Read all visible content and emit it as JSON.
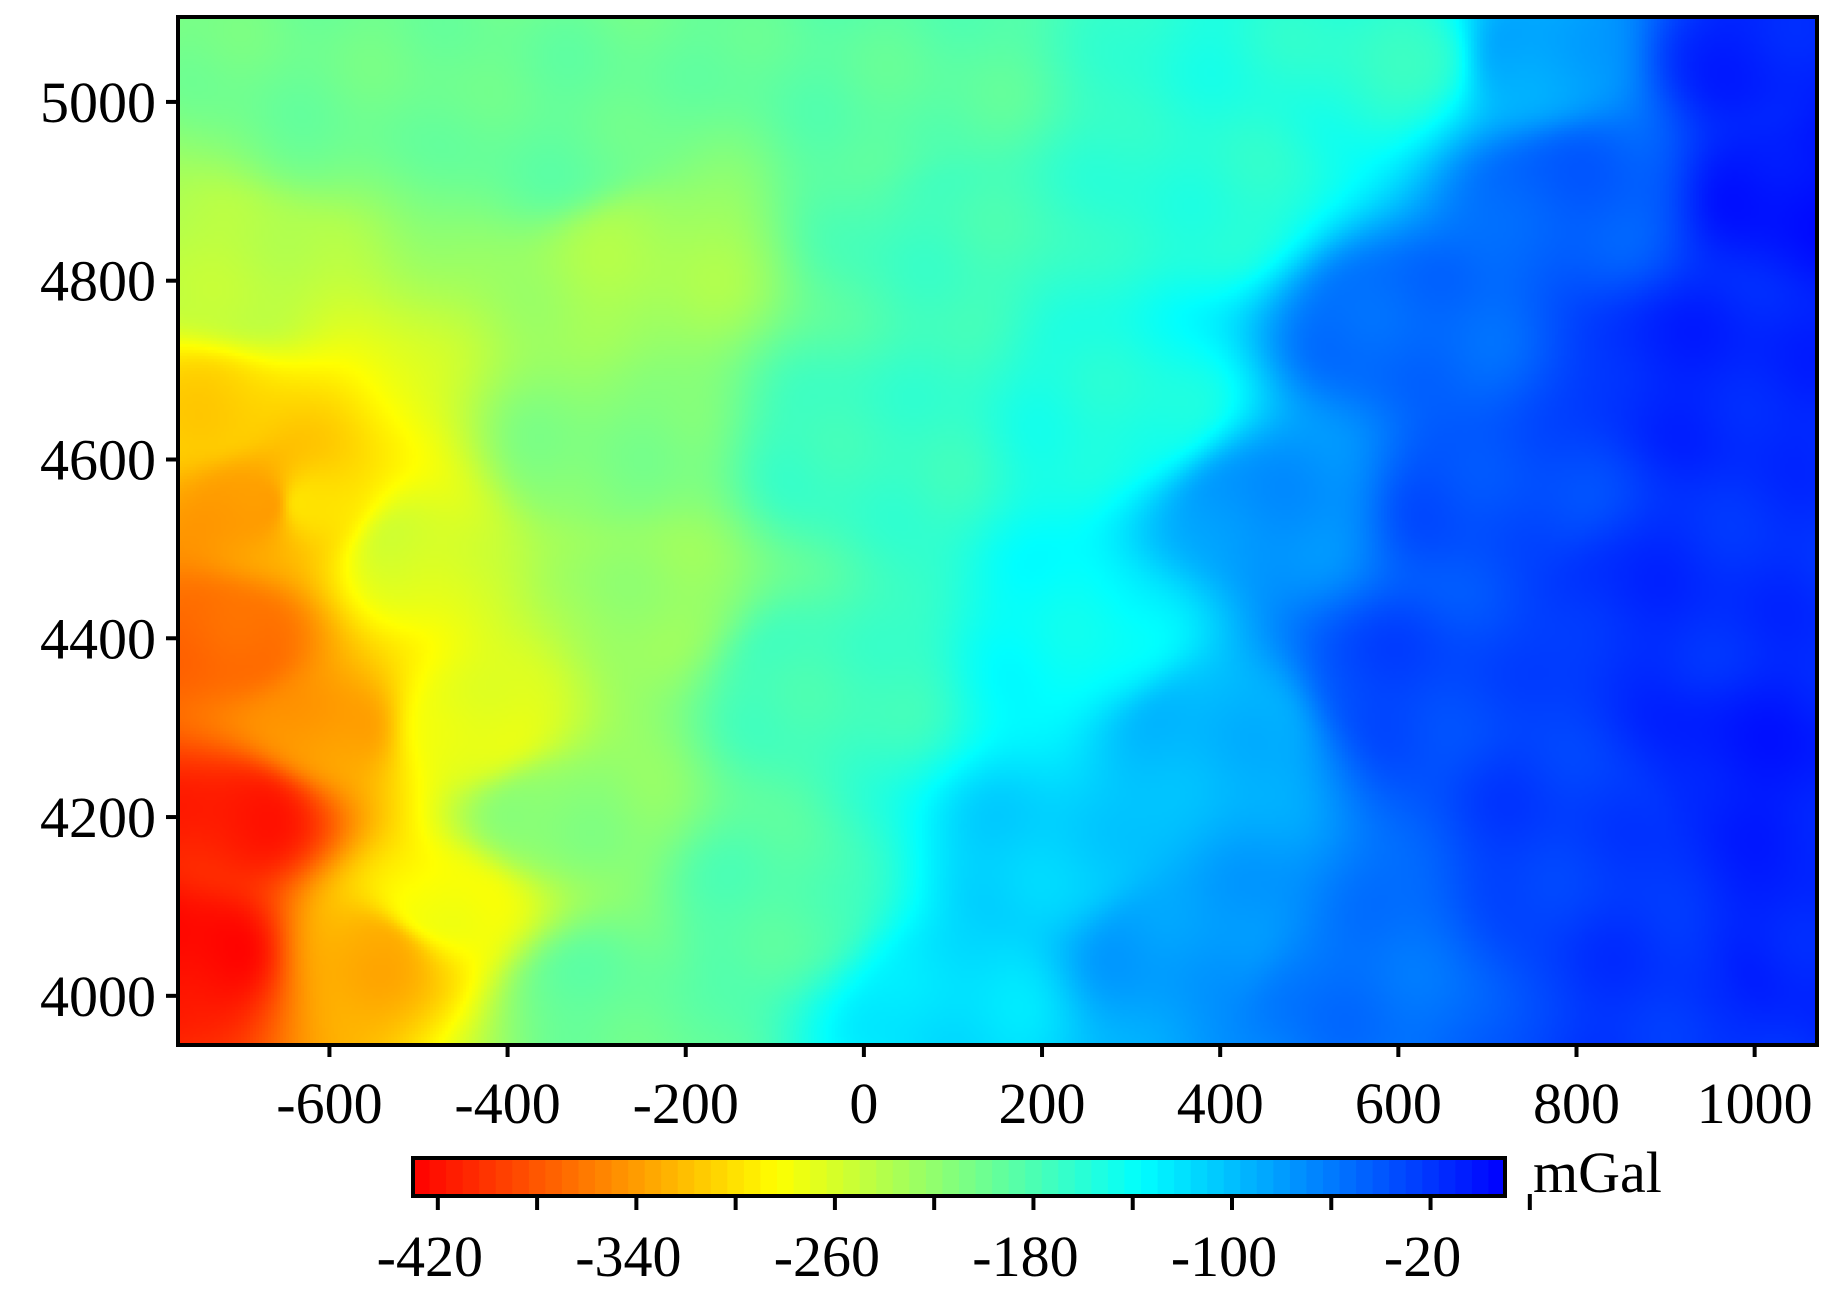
{
  "chart_data": {
    "type": "heatmap",
    "title": "",
    "xlabel": "",
    "ylabel": "",
    "xlim": [
      -770,
      1070
    ],
    "ylim": [
      3945,
      5095
    ],
    "x_ticks": [
      -600,
      -400,
      -200,
      0,
      200,
      400,
      600,
      800,
      1000
    ],
    "x_tick_labels": [
      "-600",
      "-400",
      "-200",
      "0",
      "200",
      "400",
      "600",
      "800",
      "1000"
    ],
    "y_ticks": [
      4000,
      4200,
      4400,
      4600,
      4800,
      5000
    ],
    "y_tick_labels": [
      "4000",
      "4200",
      "4400",
      "4600",
      "4800",
      "5000"
    ],
    "grid": false,
    "colorbar": {
      "placement": "bottom",
      "unit": "mGal",
      "range": [
        -430,
        10
      ],
      "ticks": [
        -420,
        -380,
        -340,
        -300,
        -260,
        -220,
        -180,
        -140,
        -100,
        -60,
        -20,
        20
      ],
      "labeled_ticks": [
        -420,
        -340,
        -260,
        -180,
        -100,
        -20
      ],
      "tick_labels": [
        "-420",
        "-340",
        "-260",
        "-180",
        "-100",
        "-20"
      ],
      "colormap": [
        "#ff0000",
        "#ff8000",
        "#ffff00",
        "#80ff80",
        "#00ffff",
        "#0080ff",
        "#0000ff"
      ]
    },
    "field_description": "Gravity anomaly (mGal); minimum ~ -420 at the west-southwest edge, rising eastward; ~-180 across the central band; ~-20 to 0 in the east/northeast.",
    "control_points": [
      {
        "x": -750,
        "y": 4050,
        "v": -425
      },
      {
        "x": -700,
        "y": 4200,
        "v": -415
      },
      {
        "x": -720,
        "y": 4400,
        "v": -370
      },
      {
        "x": -680,
        "y": 4550,
        "v": -345
      },
      {
        "x": -740,
        "y": 4650,
        "v": -310
      },
      {
        "x": -620,
        "y": 4550,
        "v": -300
      },
      {
        "x": -600,
        "y": 4300,
        "v": -340
      },
      {
        "x": -550,
        "y": 4050,
        "v": -330
      },
      {
        "x": -480,
        "y": 4100,
        "v": -280
      },
      {
        "x": -450,
        "y": 4300,
        "v": -270
      },
      {
        "x": -500,
        "y": 4500,
        "v": -260
      },
      {
        "x": -700,
        "y": 4800,
        "v": -245
      },
      {
        "x": -600,
        "y": 5000,
        "v": -200
      },
      {
        "x": -350,
        "y": 4950,
        "v": -195
      },
      {
        "x": -250,
        "y": 4820,
        "v": -235
      },
      {
        "x": -300,
        "y": 4600,
        "v": -210
      },
      {
        "x": -250,
        "y": 4450,
        "v": -225
      },
      {
        "x": -350,
        "y": 4200,
        "v": -215
      },
      {
        "x": -300,
        "y": 4000,
        "v": -195
      },
      {
        "x": -100,
        "y": 4100,
        "v": -185
      },
      {
        "x": -50,
        "y": 4350,
        "v": -175
      },
      {
        "x": 0,
        "y": 4600,
        "v": -170
      },
      {
        "x": 100,
        "y": 4850,
        "v": -175
      },
      {
        "x": 50,
        "y": 5000,
        "v": -190
      },
      {
        "x": 100,
        "y": 4000,
        "v": -120
      },
      {
        "x": 200,
        "y": 4150,
        "v": -110
      },
      {
        "x": 250,
        "y": 4400,
        "v": -140
      },
      {
        "x": 300,
        "y": 4650,
        "v": -155
      },
      {
        "x": 400,
        "y": 4900,
        "v": -160
      },
      {
        "x": 600,
        "y": 5050,
        "v": -165
      },
      {
        "x": 760,
        "y": 5050,
        "v": -85
      },
      {
        "x": 350,
        "y": 4050,
        "v": -80
      },
      {
        "x": 400,
        "y": 4300,
        "v": -95
      },
      {
        "x": 450,
        "y": 4550,
        "v": -75
      },
      {
        "x": 600,
        "y": 4750,
        "v": -50
      },
      {
        "x": 800,
        "y": 4900,
        "v": -45
      },
      {
        "x": 550,
        "y": 4000,
        "v": -55
      },
      {
        "x": 600,
        "y": 4350,
        "v": -30
      },
      {
        "x": 700,
        "y": 4550,
        "v": -35
      },
      {
        "x": 800,
        "y": 4200,
        "v": -25
      },
      {
        "x": 900,
        "y": 4450,
        "v": -15
      },
      {
        "x": 950,
        "y": 4700,
        "v": -10
      },
      {
        "x": 1000,
        "y": 4250,
        "v": -5
      },
      {
        "x": 1050,
        "y": 4050,
        "v": -10
      },
      {
        "x": 1050,
        "y": 4900,
        "v": 0
      },
      {
        "x": 900,
        "y": 4000,
        "v": -20
      },
      {
        "x": 1000,
        "y": 5050,
        "v": -10
      }
    ]
  }
}
